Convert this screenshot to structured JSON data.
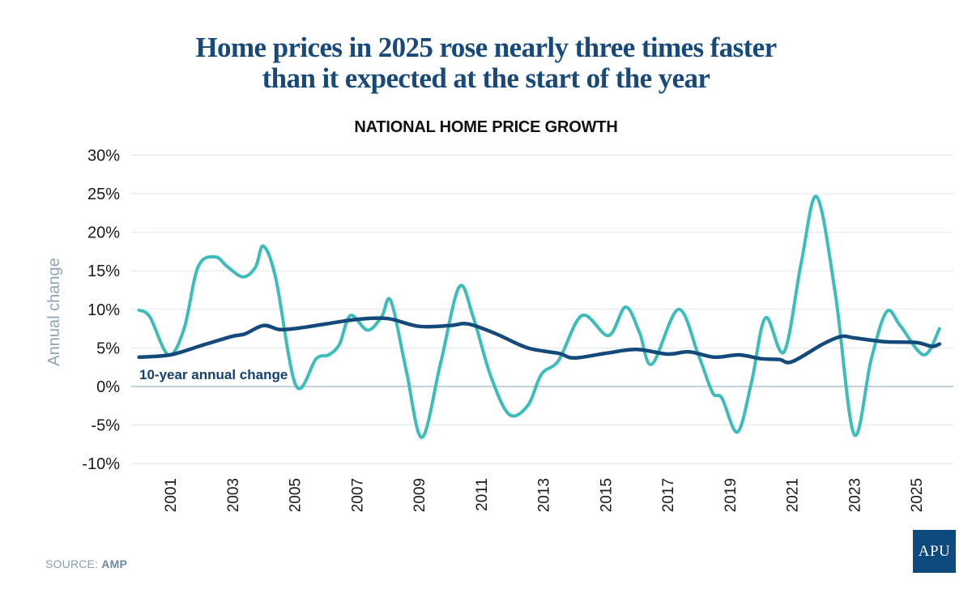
{
  "title_line1": "Home prices in 2025 rose nearly three times faster",
  "title_line2": "than it expected at the start of the year",
  "source_label": "SOURCE:",
  "source_value": "AMP",
  "logo_text": "APU",
  "colors": {
    "title": "#174a7b",
    "annual_series": "#3dbdb9",
    "ten_year_series": "#144a7b",
    "grid": "#dde5ec",
    "zero_line": "#c3d1dd",
    "ylabel": "#8fa4b6",
    "logo_bg": "#0f4a7e"
  },
  "chart_data": {
    "type": "line",
    "title": "NATIONAL HOME PRICE GROWTH",
    "xlabel": "",
    "ylabel": "Annual change",
    "ylim": [
      -10,
      30
    ],
    "xlim": [
      2000,
      2026
    ],
    "yticks": [
      30,
      25,
      20,
      15,
      10,
      5,
      0,
      -5,
      -10
    ],
    "ytick_labels": [
      "30%",
      "25%",
      "20%",
      "15%",
      "10%",
      "5%",
      "0%",
      "-5%",
      "-10%"
    ],
    "xticks": [
      2001,
      2003,
      2005,
      2007,
      2009,
      2011,
      2013,
      2015,
      2017,
      2019,
      2021,
      2023,
      2025
    ],
    "xtick_labels": [
      "2001",
      "2003",
      "2005",
      "2007",
      "2009",
      "2011",
      "2013",
      "2015",
      "2017",
      "2019",
      "2021",
      "2023",
      "2025"
    ],
    "grid": true,
    "legend": "none",
    "annotations": [
      {
        "text": "10-year annual change",
        "series": "10-year annual change",
        "placement": "below line, left"
      }
    ],
    "series": [
      {
        "name": "Annual change",
        "x": [
          2000.0,
          2000.35,
          2000.95,
          2001.45,
          2001.9,
          2002.45,
          2002.85,
          2003.35,
          2003.75,
          2004.0,
          2004.4,
          2005.05,
          2005.7,
          2006.1,
          2006.45,
          2006.8,
          2007.35,
          2007.8,
          2008.1,
          2008.6,
          2009.1,
          2009.7,
          2010.3,
          2010.75,
          2011.3,
          2011.9,
          2012.5,
          2012.95,
          2013.5,
          2014.25,
          2015.1,
          2015.65,
          2016.1,
          2016.5,
          2017.35,
          2018.0,
          2018.45,
          2018.75,
          2019.25,
          2019.7,
          2020.15,
          2020.75,
          2021.3,
          2021.8,
          2022.4,
          2023.0,
          2023.55,
          2024.05,
          2024.5,
          2025.25,
          2025.75
        ],
        "values": [
          9.9,
          9.0,
          4.1,
          7.5,
          15.5,
          16.8,
          15.5,
          14.2,
          15.5,
          18.2,
          14.0,
          0.1,
          3.6,
          4.1,
          5.5,
          9.2,
          7.3,
          9.0,
          11.1,
          2.0,
          -6.6,
          3.0,
          12.9,
          9.0,
          1.5,
          -3.6,
          -2.5,
          1.6,
          3.4,
          9.2,
          6.6,
          10.3,
          7.0,
          2.9,
          10.0,
          4.0,
          -0.8,
          -1.5,
          -5.9,
          0.5,
          8.9,
          4.5,
          16.0,
          24.6,
          12.0,
          -6.2,
          3.5,
          9.7,
          7.8,
          4.1,
          7.5
        ]
      },
      {
        "name": "10-year annual change",
        "x": [
          2000.0,
          2001.0,
          2002.0,
          2003.0,
          2003.4,
          2004.0,
          2004.5,
          2005.0,
          2006.0,
          2007.0,
          2008.0,
          2009.0,
          2010.0,
          2010.6,
          2011.5,
          2012.5,
          2013.5,
          2014.0,
          2015.0,
          2016.0,
          2017.0,
          2017.7,
          2018.5,
          2019.3,
          2020.0,
          2020.6,
          2021.0,
          2022.0,
          2022.6,
          2023.0,
          2024.0,
          2025.0,
          2025.5,
          2025.75
        ],
        "values": [
          3.8,
          4.1,
          5.3,
          6.5,
          6.8,
          7.9,
          7.4,
          7.5,
          8.1,
          8.7,
          8.8,
          7.8,
          7.9,
          8.1,
          6.8,
          5.0,
          4.3,
          3.7,
          4.3,
          4.8,
          4.2,
          4.5,
          3.8,
          4.1,
          3.6,
          3.5,
          3.2,
          5.5,
          6.5,
          6.3,
          5.8,
          5.7,
          5.2,
          5.5
        ]
      }
    ]
  }
}
